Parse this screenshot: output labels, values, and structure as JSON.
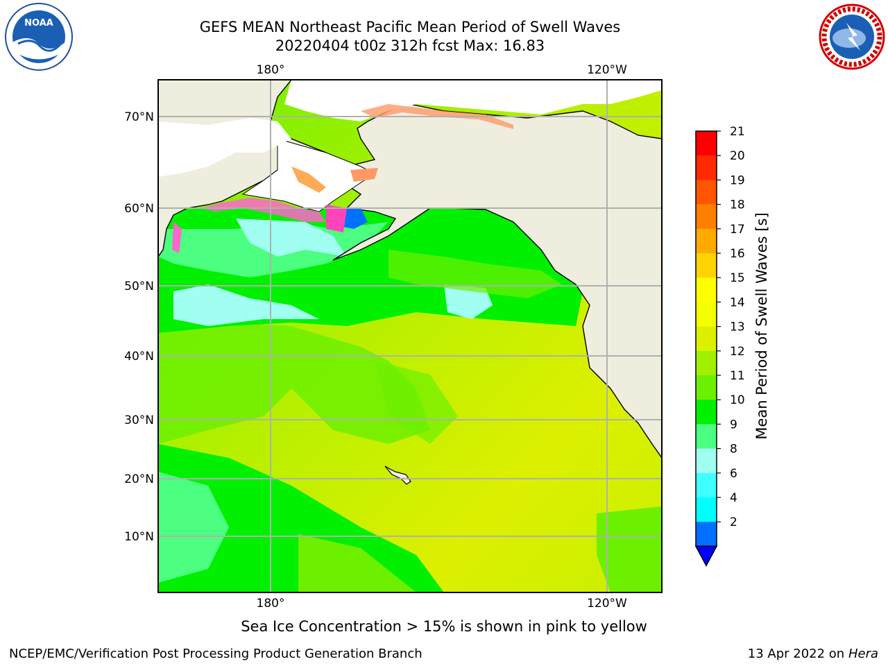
{
  "header": {
    "title": "GEFS MEAN Northeast Pacific Mean Period of Swell Waves",
    "subtitle": "20220404 t00z 312h fcst   Max: 16.83"
  },
  "logos": {
    "left": "noaa-logo",
    "left_text": "NOAA",
    "right": "nws-logo",
    "right_text": "NATIONAL WEATHER SERVICE"
  },
  "map": {
    "lon_labels": [
      "180°",
      "120°W"
    ],
    "lat_labels": [
      "70°N",
      "60°N",
      "50°N",
      "40°N",
      "30°N",
      "20°N",
      "10°N"
    ],
    "gridlines": true,
    "land_color": "#efedde",
    "ocean_dominant_colors": [
      "#00f000",
      "#dcf000",
      "#6cf000",
      "#8cfff0"
    ]
  },
  "colorbar": {
    "label": "Mean Period of Swell Waves [s]",
    "ticks": [
      "21",
      "20",
      "19",
      "18",
      "17",
      "16",
      "15",
      "14",
      "13",
      "12",
      "11",
      "10",
      "9",
      "8",
      "6",
      "4",
      "2"
    ],
    "colors_top_to_bottom": [
      "#ff0000",
      "#ff2a00",
      "#ff5500",
      "#ff7f00",
      "#ffaa00",
      "#ffd400",
      "#ffff00",
      "#f4ff00",
      "#dcf000",
      "#a0f000",
      "#6cf000",
      "#00f000",
      "#4cff80",
      "#a0fff0",
      "#40ffff",
      "#00ffff",
      "#0070ff",
      "#0000ff"
    ]
  },
  "note": "Sea Ice Concentration > 15% is shown in pink to yellow",
  "footer": {
    "left": "NCEP/EMC/Verification Post Processing Product Generation Branch",
    "right_date": "13 Apr 2022 on ",
    "right_host": "Hera"
  }
}
